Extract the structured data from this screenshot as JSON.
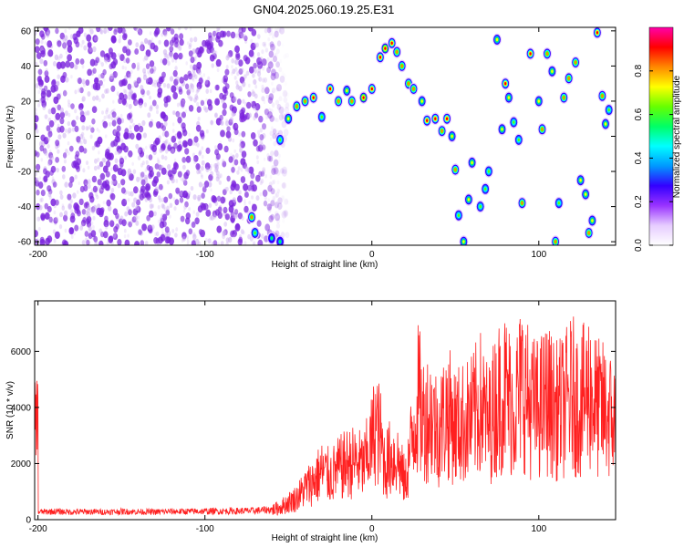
{
  "title": "GN04.2025.060.19.25.E31",
  "colors": {
    "snr_line": "#ff2020",
    "scatter_points": "#7a22dd",
    "axes": "#000000",
    "background": "#ffffff"
  },
  "colorbar": {
    "label": "Normalized spectral amplitude",
    "range": [
      0,
      1
    ],
    "ticks": [
      "0.0",
      "0.2",
      "0.4",
      "0.6",
      "0.8"
    ],
    "tick_values": [
      0.0,
      0.2,
      0.4,
      0.6,
      0.8
    ],
    "colormap": [
      "#ffffff",
      "#e6ccff",
      "#9933ff",
      "#3300ff",
      "#0099ff",
      "#00ffff",
      "#00ff66",
      "#66ff00",
      "#ffff00",
      "#ff8800",
      "#ff0000",
      "#ff00aa"
    ]
  },
  "chart_data": [
    {
      "type": "heatmap",
      "title": "GN04.2025.060.19.25.E31",
      "xlabel": "Height of straight line (km)",
      "ylabel": "Frequency (Hz)",
      "xlim": [
        -202,
        146
      ],
      "ylim": [
        -62,
        62
      ],
      "xticks": [
        -200,
        -100,
        0,
        100
      ],
      "xtick_labels": [
        "-200",
        "-100",
        "0",
        "100"
      ],
      "yticks": [
        -60,
        -40,
        -20,
        0,
        20,
        40,
        60
      ],
      "ytick_labels": [
        "-60",
        "-40",
        "-20",
        "0",
        "20",
        "40",
        "60"
      ],
      "grid": false,
      "background_noise_extent_km": [
        -202,
        -50
      ],
      "features": [
        {
          "x": -72,
          "y": -46,
          "amp": 0.8
        },
        {
          "x": -70,
          "y": -55,
          "amp": 0.6
        },
        {
          "x": -60,
          "y": -58,
          "amp": 0.5
        },
        {
          "x": -55,
          "y": -60,
          "amp": 0.5
        },
        {
          "x": -55,
          "y": -2,
          "amp": 0.6
        },
        {
          "x": -50,
          "y": 10,
          "amp": 0.7
        },
        {
          "x": -45,
          "y": 17,
          "amp": 0.8
        },
        {
          "x": -40,
          "y": 20,
          "amp": 0.8
        },
        {
          "x": -35,
          "y": 22,
          "amp": 0.9
        },
        {
          "x": -30,
          "y": 11,
          "amp": 0.6
        },
        {
          "x": -25,
          "y": 27,
          "amp": 0.9
        },
        {
          "x": -20,
          "y": 20,
          "amp": 0.8
        },
        {
          "x": -15,
          "y": 26,
          "amp": 0.7
        },
        {
          "x": -12,
          "y": 20,
          "amp": 0.8
        },
        {
          "x": -5,
          "y": 22,
          "amp": 0.95
        },
        {
          "x": 0,
          "y": 27,
          "amp": 0.9
        },
        {
          "x": 5,
          "y": 45,
          "amp": 0.9
        },
        {
          "x": 8,
          "y": 50,
          "amp": 0.95
        },
        {
          "x": 12,
          "y": 53,
          "amp": 0.9
        },
        {
          "x": 15,
          "y": 48,
          "amp": 0.8
        },
        {
          "x": 18,
          "y": 40,
          "amp": 0.8
        },
        {
          "x": 22,
          "y": 30,
          "amp": 0.8
        },
        {
          "x": 25,
          "y": 27,
          "amp": 0.8
        },
        {
          "x": 30,
          "y": 20,
          "amp": 0.7
        },
        {
          "x": 33,
          "y": 9,
          "amp": 0.9
        },
        {
          "x": 38,
          "y": 10,
          "amp": 0.9
        },
        {
          "x": 42,
          "y": 3,
          "amp": 0.8
        },
        {
          "x": 45,
          "y": 10,
          "amp": 0.9
        },
        {
          "x": 48,
          "y": 0,
          "amp": 0.7
        },
        {
          "x": 50,
          "y": -19,
          "amp": 0.8
        },
        {
          "x": 52,
          "y": -45,
          "amp": 0.6
        },
        {
          "x": 55,
          "y": -60,
          "amp": 0.7
        },
        {
          "x": 58,
          "y": -36,
          "amp": 0.7
        },
        {
          "x": 60,
          "y": -15,
          "amp": 0.7
        },
        {
          "x": 65,
          "y": -40,
          "amp": 0.6
        },
        {
          "x": 68,
          "y": -30,
          "amp": 0.6
        },
        {
          "x": 70,
          "y": -20,
          "amp": 0.6
        },
        {
          "x": 75,
          "y": 55,
          "amp": 0.7
        },
        {
          "x": 78,
          "y": 4,
          "amp": 0.7
        },
        {
          "x": 80,
          "y": 30,
          "amp": 0.9
        },
        {
          "x": 82,
          "y": 22,
          "amp": 0.7
        },
        {
          "x": 85,
          "y": 8,
          "amp": 0.6
        },
        {
          "x": 88,
          "y": -2,
          "amp": 0.6
        },
        {
          "x": 90,
          "y": -38,
          "amp": 0.8
        },
        {
          "x": 95,
          "y": 47,
          "amp": 0.9
        },
        {
          "x": 100,
          "y": 20,
          "amp": 0.7
        },
        {
          "x": 102,
          "y": 4,
          "amp": 0.8
        },
        {
          "x": 105,
          "y": 47,
          "amp": 0.8
        },
        {
          "x": 108,
          "y": 37,
          "amp": 0.7
        },
        {
          "x": 110,
          "y": -60,
          "amp": 0.8
        },
        {
          "x": 112,
          "y": -38,
          "amp": 0.6
        },
        {
          "x": 115,
          "y": 22,
          "amp": 0.8
        },
        {
          "x": 118,
          "y": 33,
          "amp": 0.8
        },
        {
          "x": 122,
          "y": 42,
          "amp": 0.8
        },
        {
          "x": 125,
          "y": -25,
          "amp": 0.7
        },
        {
          "x": 128,
          "y": -33,
          "amp": 0.7
        },
        {
          "x": 130,
          "y": -55,
          "amp": 0.8
        },
        {
          "x": 132,
          "y": -48,
          "amp": 0.7
        },
        {
          "x": 135,
          "y": 59,
          "amp": 0.9
        },
        {
          "x": 138,
          "y": 23,
          "amp": 0.8
        },
        {
          "x": 140,
          "y": 7,
          "amp": 0.7
        },
        {
          "x": 142,
          "y": 15,
          "amp": 0.6
        }
      ]
    },
    {
      "type": "line",
      "xlabel": "Height of straight line (km)",
      "ylabel": "SNR (10 * v/v)",
      "xlim": [
        -202,
        146
      ],
      "ylim": [
        0,
        7800
      ],
      "xticks": [
        -200,
        -100,
        0,
        100
      ],
      "xtick_labels": [
        "-200",
        "-100",
        "0",
        "100"
      ],
      "yticks": [
        0,
        2000,
        4000,
        6000
      ],
      "ytick_labels": [
        "0",
        "2000",
        "4000",
        "6000"
      ],
      "grid": false,
      "series": [
        {
          "color": "#ff2020",
          "x": [
            -200,
            -190,
            -180,
            -170,
            -160,
            -150,
            -140,
            -130,
            -120,
            -110,
            -100,
            -90,
            -80,
            -70,
            -60,
            -55,
            -50,
            -45,
            -40,
            -35,
            -30,
            -25,
            -20,
            -15,
            -10,
            -5,
            0,
            2,
            5,
            8,
            10,
            15,
            20,
            25,
            28,
            30,
            35,
            40,
            45,
            50,
            55,
            60,
            65,
            70,
            75,
            80,
            85,
            90,
            95,
            100,
            105,
            110,
            115,
            120,
            125,
            130,
            135,
            140,
            145
          ],
          "y": [
            300,
            320,
            300,
            310,
            300,
            320,
            310,
            300,
            320,
            320,
            330,
            330,
            340,
            350,
            400,
            500,
            700,
            900,
            1300,
            1600,
            2000,
            1800,
            2100,
            2300,
            2400,
            2200,
            3200,
            3900,
            3400,
            2200,
            2500,
            2600,
            1500,
            3800,
            5100,
            4200,
            4300,
            3700,
            4500,
            3900,
            4000,
            4200,
            4800,
            3900,
            5000,
            5300,
            4600,
            5600,
            4700,
            4600,
            5000,
            4500,
            4700,
            5200,
            4700,
            5400,
            4600,
            4500,
            4100
          ]
        }
      ]
    }
  ]
}
